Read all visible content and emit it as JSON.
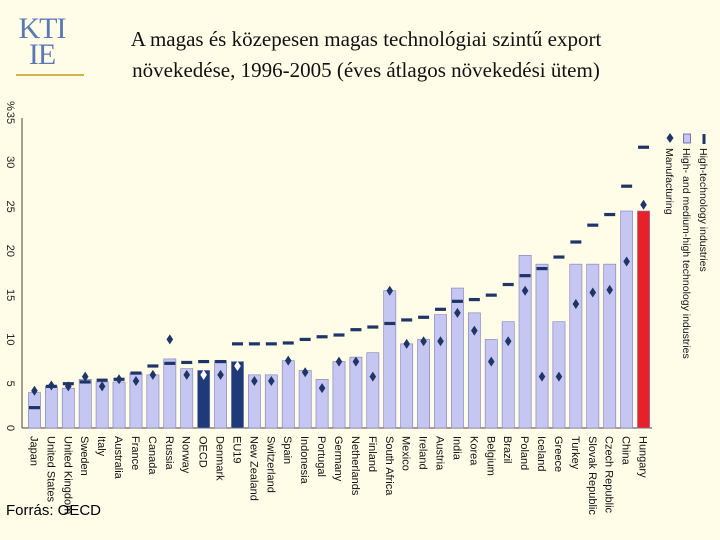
{
  "header": {
    "logo_text": "KTI IE",
    "title_line1": "A magas és közepesen magas technológiai szintű export",
    "title_line2": "növekedése, 1996-2005  (éves átlagos növekedési ütem)"
  },
  "footer": {
    "source": "Forrás: OECD"
  },
  "colors": {
    "background": "#fffde8",
    "bar_default": "#c6c6f2",
    "bar_aggregate": "#1f3a78",
    "bar_hungary": "#e8202a",
    "marker": "#1f3566"
  },
  "chart_data": {
    "type": "bar",
    "orientation": "rotated-90",
    "title": "A magas és közepesen magas technológiai szintű export növekedése, 1996-2005  (éves átlagos növekedési ütem)",
    "ylabel": "%",
    "ylim": [
      0,
      35
    ],
    "yticks": [
      "0",
      "5",
      "10",
      "15",
      "20",
      "25",
      "30",
      "35"
    ],
    "categories": [
      "Japan",
      "United States",
      "United Kingdom",
      "Sweden",
      "Italy",
      "Australia",
      "France",
      "Canada",
      "Russia",
      "Norway",
      "OECD",
      "Denmark",
      "EU19",
      "New Zealand",
      "Switzerland",
      "Spain",
      "Indonesia",
      "Portugal",
      "Germany",
      "Netherlands",
      "Finland",
      "South Africa",
      "Mexico",
      "Ireland",
      "Austria",
      "India",
      "Korea",
      "Belgium",
      "Brazil",
      "Poland",
      "Iceland",
      "Greece",
      "Turkey",
      "Slovak Republic",
      "Czech Republic",
      "China",
      "Hungary"
    ],
    "highlight": {
      "OECD": "aggregate",
      "EU19": "aggregate",
      "Hungary": "hungary"
    },
    "series": [
      {
        "name": "High-technology industries",
        "marker": "dash",
        "values": [
          2.3,
          4.7,
          5.0,
          5.2,
          5.4,
          5.5,
          6.2,
          7.0,
          7.3,
          7.4,
          7.5,
          7.5,
          9.5,
          9.5,
          9.5,
          9.6,
          10.0,
          10.3,
          10.5,
          11.1,
          11.4,
          11.8,
          12.2,
          12.5,
          13.4,
          14.3,
          14.5,
          15.0,
          16.2,
          17.2,
          18.0,
          19.3,
          21.0,
          22.9,
          24.1,
          27.3,
          31.7
        ]
      },
      {
        "name": "High- and medium-high technology industries",
        "marker": "bar",
        "values": [
          4.0,
          4.7,
          4.5,
          5.5,
          5.2,
          5.2,
          6.2,
          6.0,
          7.8,
          6.7,
          6.5,
          7.6,
          7.5,
          6.0,
          6.0,
          7.6,
          6.5,
          5.5,
          7.5,
          8.0,
          8.5,
          15.5,
          9.5,
          10.0,
          12.8,
          15.8,
          13.0,
          10.0,
          12.0,
          19.5,
          18.5,
          12.0,
          18.5,
          18.5,
          18.5,
          24.5,
          24.5
        ]
      },
      {
        "name": "Manufacturing",
        "marker": "diamond",
        "values": [
          4.2,
          4.8,
          4.7,
          5.8,
          4.7,
          5.5,
          5.3,
          6.0,
          10.0,
          6.0,
          6.0,
          6.0,
          7.0,
          5.3,
          5.3,
          7.6,
          6.3,
          4.5,
          7.5,
          7.5,
          5.8,
          15.5,
          9.5,
          9.8,
          9.8,
          13.0,
          11.0,
          7.5,
          9.8,
          15.5,
          5.8,
          5.8,
          14.0,
          15.3,
          15.6,
          18.8,
          25.2
        ]
      }
    ],
    "legend": [
      "High-technology industries",
      "High- and medium-high technology industries",
      "Manufacturing"
    ],
    "legend_position": "right",
    "grid": false
  }
}
